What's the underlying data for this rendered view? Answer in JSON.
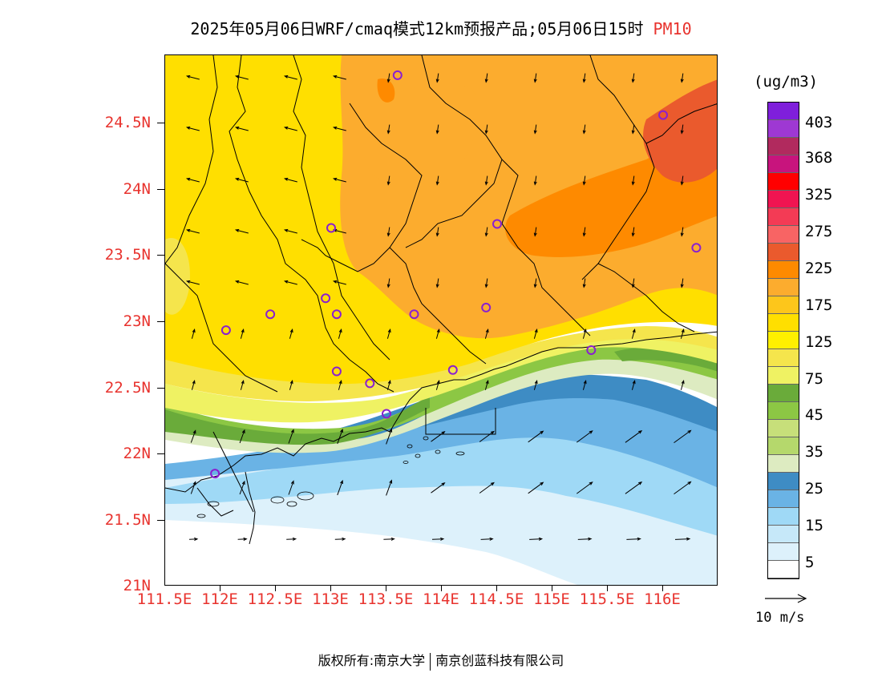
{
  "title": {
    "text": "2025年05月06日WRF/cmaq模式12km预报产品;05月06日15时",
    "pollutant": "PM10"
  },
  "map": {
    "lon_range": [
      111.5,
      116.5
    ],
    "lat_range": [
      21.0,
      25.0
    ],
    "y_ticks": [
      {
        "value": 24.5,
        "label": "24.5N"
      },
      {
        "value": 24.0,
        "label": "24N"
      },
      {
        "value": 23.5,
        "label": "23.5N"
      },
      {
        "value": 23.0,
        "label": "23N"
      },
      {
        "value": 22.5,
        "label": "22.5N"
      },
      {
        "value": 22.0,
        "label": "22N"
      },
      {
        "value": 21.5,
        "label": "21.5N"
      },
      {
        "value": 21.0,
        "label": "21N"
      }
    ],
    "x_ticks": [
      {
        "value": 111.5,
        "label": "111.5E"
      },
      {
        "value": 112.0,
        "label": "112E"
      },
      {
        "value": 112.5,
        "label": "112.5E"
      },
      {
        "value": 113.0,
        "label": "113E"
      },
      {
        "value": 113.5,
        "label": "113.5E"
      },
      {
        "value": 114.0,
        "label": "114E"
      },
      {
        "value": 114.5,
        "label": "114.5E"
      },
      {
        "value": 115.0,
        "label": "115E"
      },
      {
        "value": 115.5,
        "label": "115.5E"
      },
      {
        "value": 116.0,
        "label": "116E"
      }
    ],
    "stations": [
      {
        "lon": 113.6,
        "lat": 24.85
      },
      {
        "lon": 116.0,
        "lat": 24.55
      },
      {
        "lon": 113.0,
        "lat": 23.7
      },
      {
        "lon": 114.5,
        "lat": 23.73
      },
      {
        "lon": 116.3,
        "lat": 23.55
      },
      {
        "lon": 112.45,
        "lat": 23.05
      },
      {
        "lon": 112.95,
        "lat": 23.17
      },
      {
        "lon": 113.05,
        "lat": 23.05
      },
      {
        "lon": 113.75,
        "lat": 23.05
      },
      {
        "lon": 114.4,
        "lat": 23.1
      },
      {
        "lon": 112.05,
        "lat": 22.93
      },
      {
        "lon": 113.05,
        "lat": 22.62
      },
      {
        "lon": 113.35,
        "lat": 22.53
      },
      {
        "lon": 114.1,
        "lat": 22.63
      },
      {
        "lon": 115.35,
        "lat": 22.78
      },
      {
        "lon": 113.5,
        "lat": 22.3
      },
      {
        "lon": 111.95,
        "lat": 21.85
      }
    ]
  },
  "legend": {
    "units": "(ug/m3)",
    "labels": [
      "403",
      "368",
      "325",
      "275",
      "225",
      "175",
      "125",
      "75",
      "45",
      "35",
      "25",
      "15",
      "5"
    ],
    "colors": [
      "#7f1fdb",
      "#9e38d3",
      "#b12a5e",
      "#c8147d",
      "#ff0000",
      "#f01451",
      "#f33b55",
      "#f86464",
      "#ea5a2d",
      "#fe8a00",
      "#fcac2e",
      "#fdc61b",
      "#ffdf00",
      "#fff000",
      "#f5e54c",
      "#eff263",
      "#6aab3a",
      "#8cc744",
      "#c7df7a",
      "#b5d86c",
      "#ddebc1",
      "#3e8cc4",
      "#6ab3e5",
      "#9fd9f6",
      "#c6e8f9",
      "#ddf1fb",
      "#ffffff"
    ],
    "scale_label": "10 m/s"
  },
  "footer": {
    "copyright": "版权所有:南京大学",
    "org": "南京创蓝科技有限公司"
  }
}
